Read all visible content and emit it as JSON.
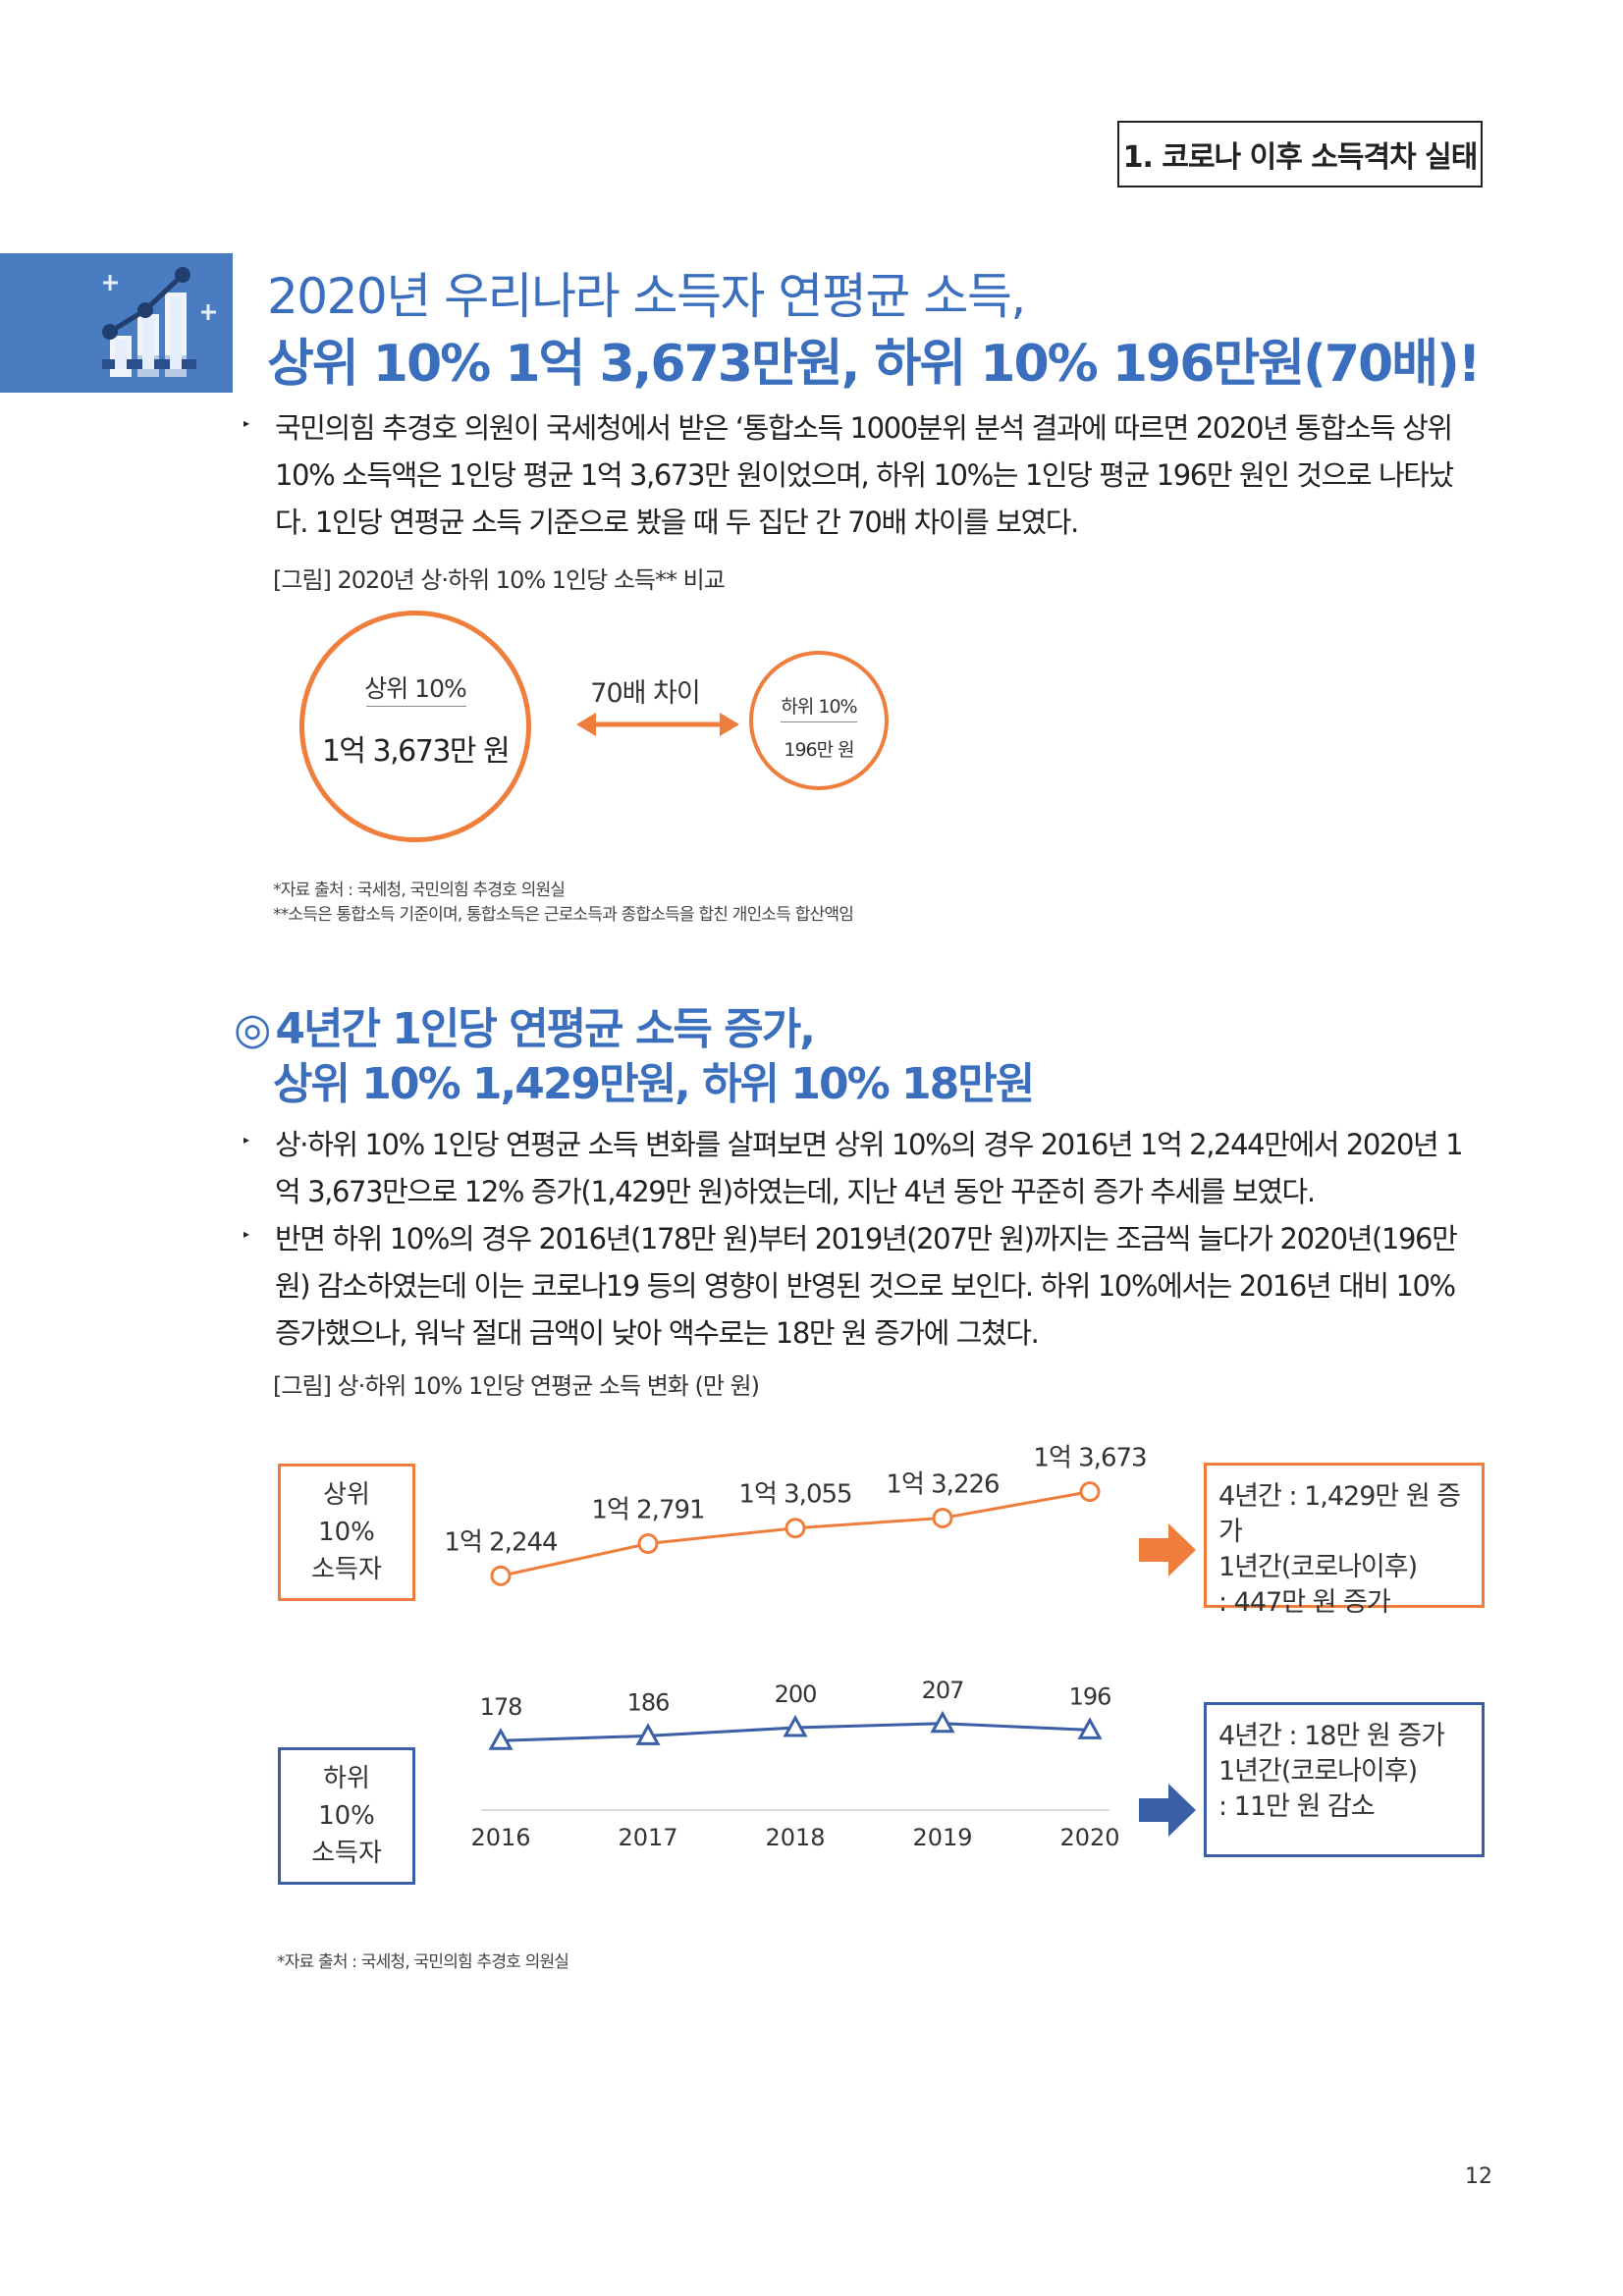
{
  "header": {
    "section_tag": "1. 코로나 이후 소득격차 실태"
  },
  "section1": {
    "icon": "bar-chart-growth-icon",
    "title_line1": "2020년 우리나라 소득자 연평균 소득,",
    "title_line2": "상위 10% 1억 3,673만원, 하위 10% 196만원(70배)!",
    "paragraph_lines": [
      "국민의힘 추경호 의원이 국세청에서 받은 ‘통합소득 1000분위 분석 결과에 따르면 2020년 통합소득 상위",
      "10% 소득액은 1인당 평균 1억 3,673만 원이었으며, 하위 10%는 1인당 평균 196만 원인 것으로 나타났",
      "다. 1인당 연평균 소득 기준으로 봤을 때 두 집단 간 70배 차이를 보였다."
    ],
    "figure_caption": "[그림] 2020년 상·하위 10% 1인당 소득** 비교",
    "figure": {
      "top_label": "상위 10%",
      "top_value": "1억 3,673만 원",
      "arrow_label": "70배 차이",
      "bottom_label": "하위 10%",
      "bottom_value": "196만 원"
    },
    "note_source": "*자료 출처 : 국세청, 국민의힘 추경호 의원실",
    "note_income": "**소득은 통합소득 기준이며, 통합소득은 근로소득과 종합소득을 합친 개인소득 합산액임"
  },
  "section2": {
    "title_marker": "◎",
    "title_line1": "4년간 1인당 연평균 소득 증가,",
    "title_line2": "상위 10% 1,429만원, 하위 10% 18만원",
    "bullet1_lines": [
      "상·하위 10% 1인당 연평균 소득 변화를 살펴보면 상위 10%의 경우 2016년 1억 2,244만에서 2020년 1",
      "억 3,673만으로 12% 증가(1,429만 원)하였는데, 지난 4년 동안 꾸준히 증가 추세를 보였다."
    ],
    "bullet2_lines": [
      "반면 하위 10%의 경우 2016년(178만 원)부터 2019년(207만 원)까지는 조금씩 늘다가 2020년(196만",
      "원) 감소하였는데 이는 코로나19 등의 영향이 반영된 것으로 보인다. 하위 10%에서는 2016년 대비 10%",
      "증가했으나, 워낙 절대 금액이 낮아 액수로는 18만 원 증가에 그쳤다."
    ],
    "figure_caption": "[그림] 상·하위 10% 1인당 연평균 소득 변화 (만 원)",
    "top_box_lines": [
      "상위",
      "10%",
      "소득자"
    ],
    "bottom_box_lines": [
      "하위",
      "10%",
      "소득자"
    ],
    "top_summary_lines": [
      "4년간 : 1,429만 원 증가",
      "1년간(코로나이후)",
      ": 447만 원 증가"
    ],
    "bottom_summary_lines": [
      "4년간 : 18만 원 증가",
      "1년간(코로나이후)",
      ": 11만 원 감소"
    ],
    "note_source": "*자료 출처 : 국세청, 국민의힘 추경호 의원실"
  },
  "chart_data": [
    {
      "type": "line",
      "title": "",
      "xlabel": "",
      "ylabel": "",
      "categories": [
        "2016",
        "2017",
        "2018",
        "2019",
        "2020"
      ],
      "series": [
        {
          "name": "상위 10% 소득자",
          "values": [
            12244,
            12791,
            13055,
            13226,
            13673
          ],
          "labels": [
            "1억 2,244",
            "1억 2,791",
            "1억 3,055",
            "1억 3,226",
            "1억 3,673"
          ],
          "color": "#ef7d3c",
          "marker": "circle"
        }
      ],
      "ylim": [
        12000,
        14000
      ],
      "grid": false
    },
    {
      "type": "line",
      "title": "",
      "xlabel": "",
      "ylabel": "",
      "categories": [
        "2016",
        "2017",
        "2018",
        "2019",
        "2020"
      ],
      "series": [
        {
          "name": "하위 10% 소득자",
          "values": [
            178,
            186,
            200,
            207,
            196
          ],
          "labels": [
            "178",
            "186",
            "200",
            "207",
            "196"
          ],
          "color": "#3b5fa6",
          "marker": "triangle"
        }
      ],
      "ylim": [
        100,
        300
      ],
      "grid": false
    }
  ],
  "colors": {
    "accent_blue": "#3b6fbd",
    "accent_orange": "#ef7d3c",
    "navy": "#3b5fa6"
  },
  "footer": {
    "page_number": "12"
  }
}
